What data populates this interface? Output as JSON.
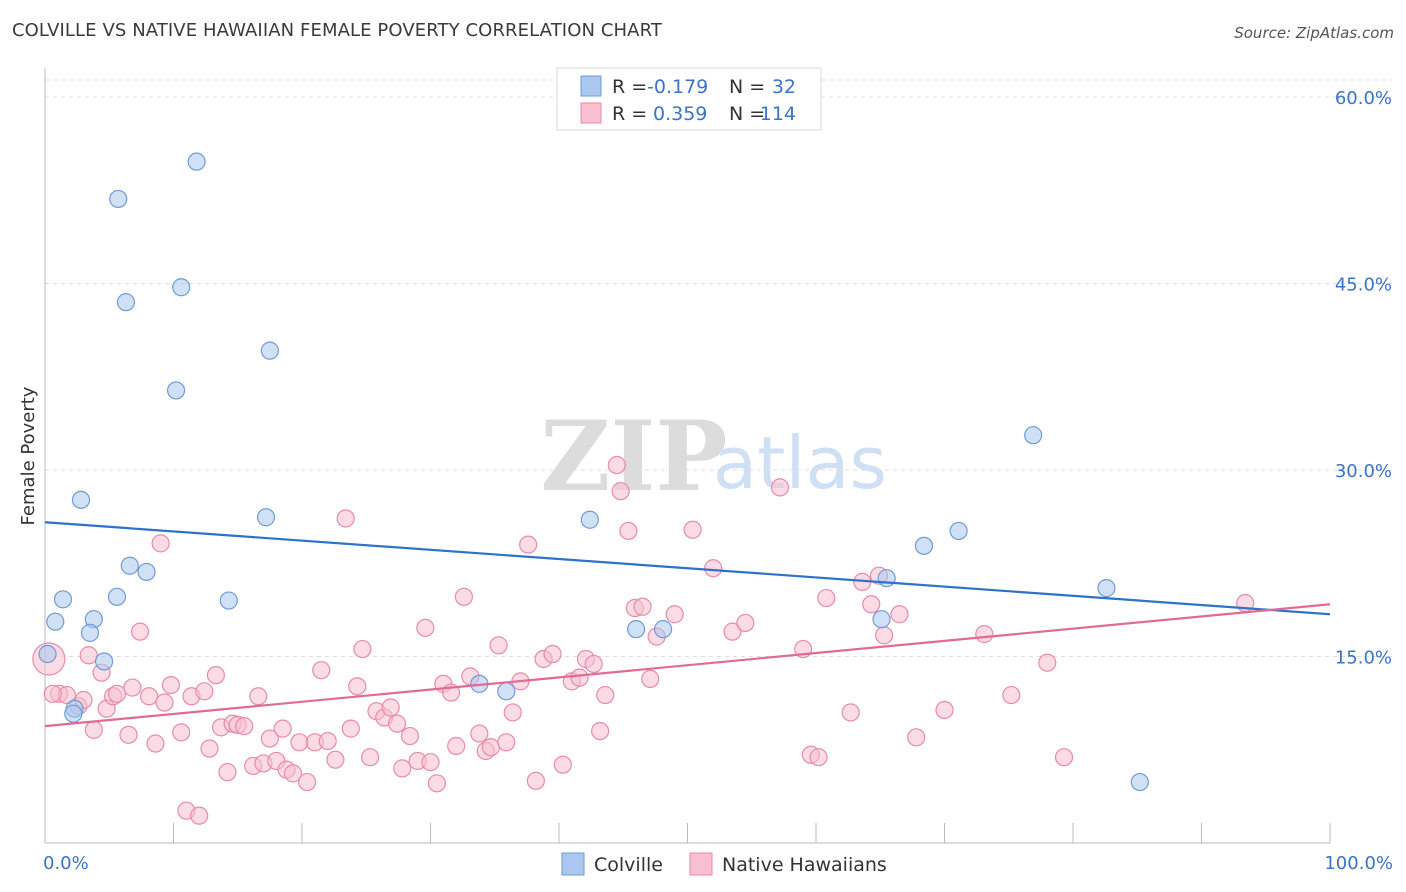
{
  "title": "COLVILLE VS NATIVE HAWAIIAN FEMALE POVERTY CORRELATION CHART",
  "source": "Source: ZipAtlas.com",
  "watermark": {
    "zip": "ZIP",
    "atlas": "atlas"
  },
  "colors": {
    "colville_fill": "#aac8ef",
    "colville_stroke": "#6f9bd6",
    "colville_line": "#2f72c9",
    "hawaiian_fill": "#f8bfd0",
    "hawaiian_stroke": "#e98aaa",
    "hawaiian_line": "#e26a96",
    "tick_text": "#3b73c7",
    "grid": "#dddddd"
  },
  "legend_top": {
    "rows": [
      {
        "r_label": "R =",
        "r_value": "-0.179",
        "n_label": "N =",
        "n_value": "32"
      },
      {
        "r_label": "R =",
        "r_value": "0.359",
        "n_label": "N =",
        "n_value": "114"
      }
    ]
  },
  "legend_bottom": [
    "Colville",
    "Native Hawaiians"
  ],
  "chart_data": {
    "type": "scatter",
    "ylabel": "Female Poverty",
    "xlabel": "",
    "xlim": [
      0,
      100
    ],
    "ylim": [
      0,
      60
    ],
    "x_tick_labels": [
      {
        "value": 0,
        "label": "0.0%"
      },
      {
        "value": 100,
        "label": "100.0%"
      }
    ],
    "y_tick_labels": [
      {
        "value": 15,
        "label": "15.0%"
      },
      {
        "value": 30,
        "label": "30.0%"
      },
      {
        "value": 45,
        "label": "45.0%"
      },
      {
        "value": 60,
        "label": "60.0%"
      }
    ],
    "grid": "horizontal dashed",
    "legend_placement": "top-center",
    "series": [
      {
        "name": "Colville",
        "r": -0.179,
        "n": 32,
        "trend": {
          "x": [
            0,
            100
          ],
          "y": [
            25.8,
            18.4
          ]
        },
        "points": [
          [
            11.8,
            54.8
          ],
          [
            5.7,
            51.8
          ],
          [
            10.6,
            44.7
          ],
          [
            6.3,
            43.5
          ],
          [
            17.5,
            39.6
          ],
          [
            10.2,
            36.4
          ],
          [
            2.8,
            27.6
          ],
          [
            17.2,
            26.2
          ],
          [
            6.6,
            22.3
          ],
          [
            7.9,
            21.8
          ],
          [
            1.4,
            19.6
          ],
          [
            5.6,
            19.8
          ],
          [
            14.3,
            19.5
          ],
          [
            0.8,
            17.8
          ],
          [
            3.8,
            18.0
          ],
          [
            3.5,
            16.9
          ],
          [
            4.6,
            14.6
          ],
          [
            2.3,
            10.8
          ],
          [
            0.2,
            15.2
          ],
          [
            2.2,
            10.4
          ],
          [
            33.8,
            12.8
          ],
          [
            35.9,
            12.2
          ],
          [
            42.4,
            26.0
          ],
          [
            46.0,
            17.2
          ],
          [
            48.1,
            17.2
          ],
          [
            65.1,
            18.0
          ],
          [
            65.5,
            21.3
          ],
          [
            68.4,
            23.9
          ],
          [
            71.1,
            25.1
          ],
          [
            76.9,
            32.8
          ],
          [
            82.6,
            20.5
          ],
          [
            85.2,
            4.9
          ]
        ]
      },
      {
        "name": "Native Hawaiians",
        "r": 0.359,
        "n": 114,
        "trend": {
          "x": [
            0,
            100
          ],
          "y": [
            9.4,
            19.2
          ]
        },
        "points": [
          [
            0.3,
            14.8
          ],
          [
            1.1,
            12.0
          ],
          [
            1.7,
            11.9
          ],
          [
            2.6,
            11.0
          ],
          [
            3.0,
            11.5
          ],
          [
            3.4,
            15.1
          ],
          [
            3.8,
            9.1
          ],
          [
            4.4,
            13.7
          ],
          [
            4.8,
            10.8
          ],
          [
            5.3,
            11.8
          ],
          [
            5.6,
            12.0
          ],
          [
            6.5,
            8.7
          ],
          [
            6.8,
            12.5
          ],
          [
            7.4,
            17.0
          ],
          [
            8.1,
            11.8
          ],
          [
            8.6,
            8.0
          ],
          [
            9.0,
            24.1
          ],
          [
            9.3,
            11.3
          ],
          [
            9.8,
            12.7
          ],
          [
            10.6,
            8.9
          ],
          [
            11.0,
            2.6
          ],
          [
            11.4,
            11.8
          ],
          [
            12.0,
            2.2
          ],
          [
            12.4,
            12.2
          ],
          [
            12.8,
            7.6
          ],
          [
            13.3,
            13.5
          ],
          [
            13.7,
            9.3
          ],
          [
            14.2,
            5.7
          ],
          [
            14.6,
            9.6
          ],
          [
            15.0,
            9.5
          ],
          [
            15.5,
            9.4
          ],
          [
            16.2,
            6.2
          ],
          [
            16.6,
            11.8
          ],
          [
            17.0,
            6.4
          ],
          [
            17.5,
            8.4
          ],
          [
            18.0,
            6.6
          ],
          [
            18.5,
            9.2
          ],
          [
            18.8,
            5.9
          ],
          [
            19.3,
            5.6
          ],
          [
            19.8,
            8.1
          ],
          [
            20.4,
            4.9
          ],
          [
            21.0,
            8.1
          ],
          [
            21.5,
            13.9
          ],
          [
            22.0,
            8.2
          ],
          [
            22.6,
            6.7
          ],
          [
            23.4,
            26.1
          ],
          [
            23.8,
            9.2
          ],
          [
            24.3,
            12.6
          ],
          [
            24.7,
            15.6
          ],
          [
            25.3,
            6.9
          ],
          [
            25.8,
            10.6
          ],
          [
            26.4,
            10.1
          ],
          [
            26.9,
            10.9
          ],
          [
            27.4,
            9.6
          ],
          [
            27.8,
            6.0
          ],
          [
            28.4,
            8.6
          ],
          [
            29.0,
            6.6
          ],
          [
            29.6,
            17.3
          ],
          [
            30.0,
            6.5
          ],
          [
            30.5,
            4.8
          ],
          [
            31.0,
            12.8
          ],
          [
            31.6,
            12.1
          ],
          [
            32.0,
            7.8
          ],
          [
            32.6,
            19.8
          ],
          [
            33.1,
            13.4
          ],
          [
            33.8,
            8.8
          ],
          [
            34.3,
            7.4
          ],
          [
            34.7,
            7.7
          ],
          [
            35.3,
            15.9
          ],
          [
            35.9,
            8.1
          ],
          [
            36.4,
            10.5
          ],
          [
            37.0,
            13.0
          ],
          [
            37.6,
            24.0
          ],
          [
            38.2,
            5.0
          ],
          [
            38.8,
            14.8
          ],
          [
            39.5,
            15.2
          ],
          [
            40.3,
            6.3
          ],
          [
            41.0,
            13.0
          ],
          [
            41.6,
            13.3
          ],
          [
            42.1,
            14.8
          ],
          [
            42.7,
            14.4
          ],
          [
            43.2,
            9.0
          ],
          [
            43.6,
            11.9
          ],
          [
            44.5,
            30.4
          ],
          [
            44.8,
            28.3
          ],
          [
            45.4,
            25.1
          ],
          [
            45.9,
            18.9
          ],
          [
            46.5,
            19.0
          ],
          [
            47.1,
            13.2
          ],
          [
            47.6,
            16.6
          ],
          [
            49.0,
            18.4
          ],
          [
            50.4,
            25.2
          ],
          [
            52.0,
            22.1
          ],
          [
            53.5,
            17.0
          ],
          [
            54.5,
            17.7
          ],
          [
            57.2,
            28.6
          ],
          [
            59.0,
            15.6
          ],
          [
            59.6,
            7.1
          ],
          [
            60.2,
            6.9
          ],
          [
            60.8,
            19.7
          ],
          [
            62.7,
            10.5
          ],
          [
            63.6,
            21.0
          ],
          [
            64.3,
            19.2
          ],
          [
            64.9,
            21.5
          ],
          [
            65.3,
            16.7
          ],
          [
            66.5,
            18.4
          ],
          [
            67.8,
            8.5
          ],
          [
            70.0,
            10.7
          ],
          [
            73.1,
            16.8
          ],
          [
            75.2,
            11.9
          ],
          [
            78.0,
            14.5
          ],
          [
            79.3,
            6.9
          ],
          [
            93.4,
            19.3
          ],
          [
            0.6,
            12.0
          ]
        ]
      }
    ]
  }
}
